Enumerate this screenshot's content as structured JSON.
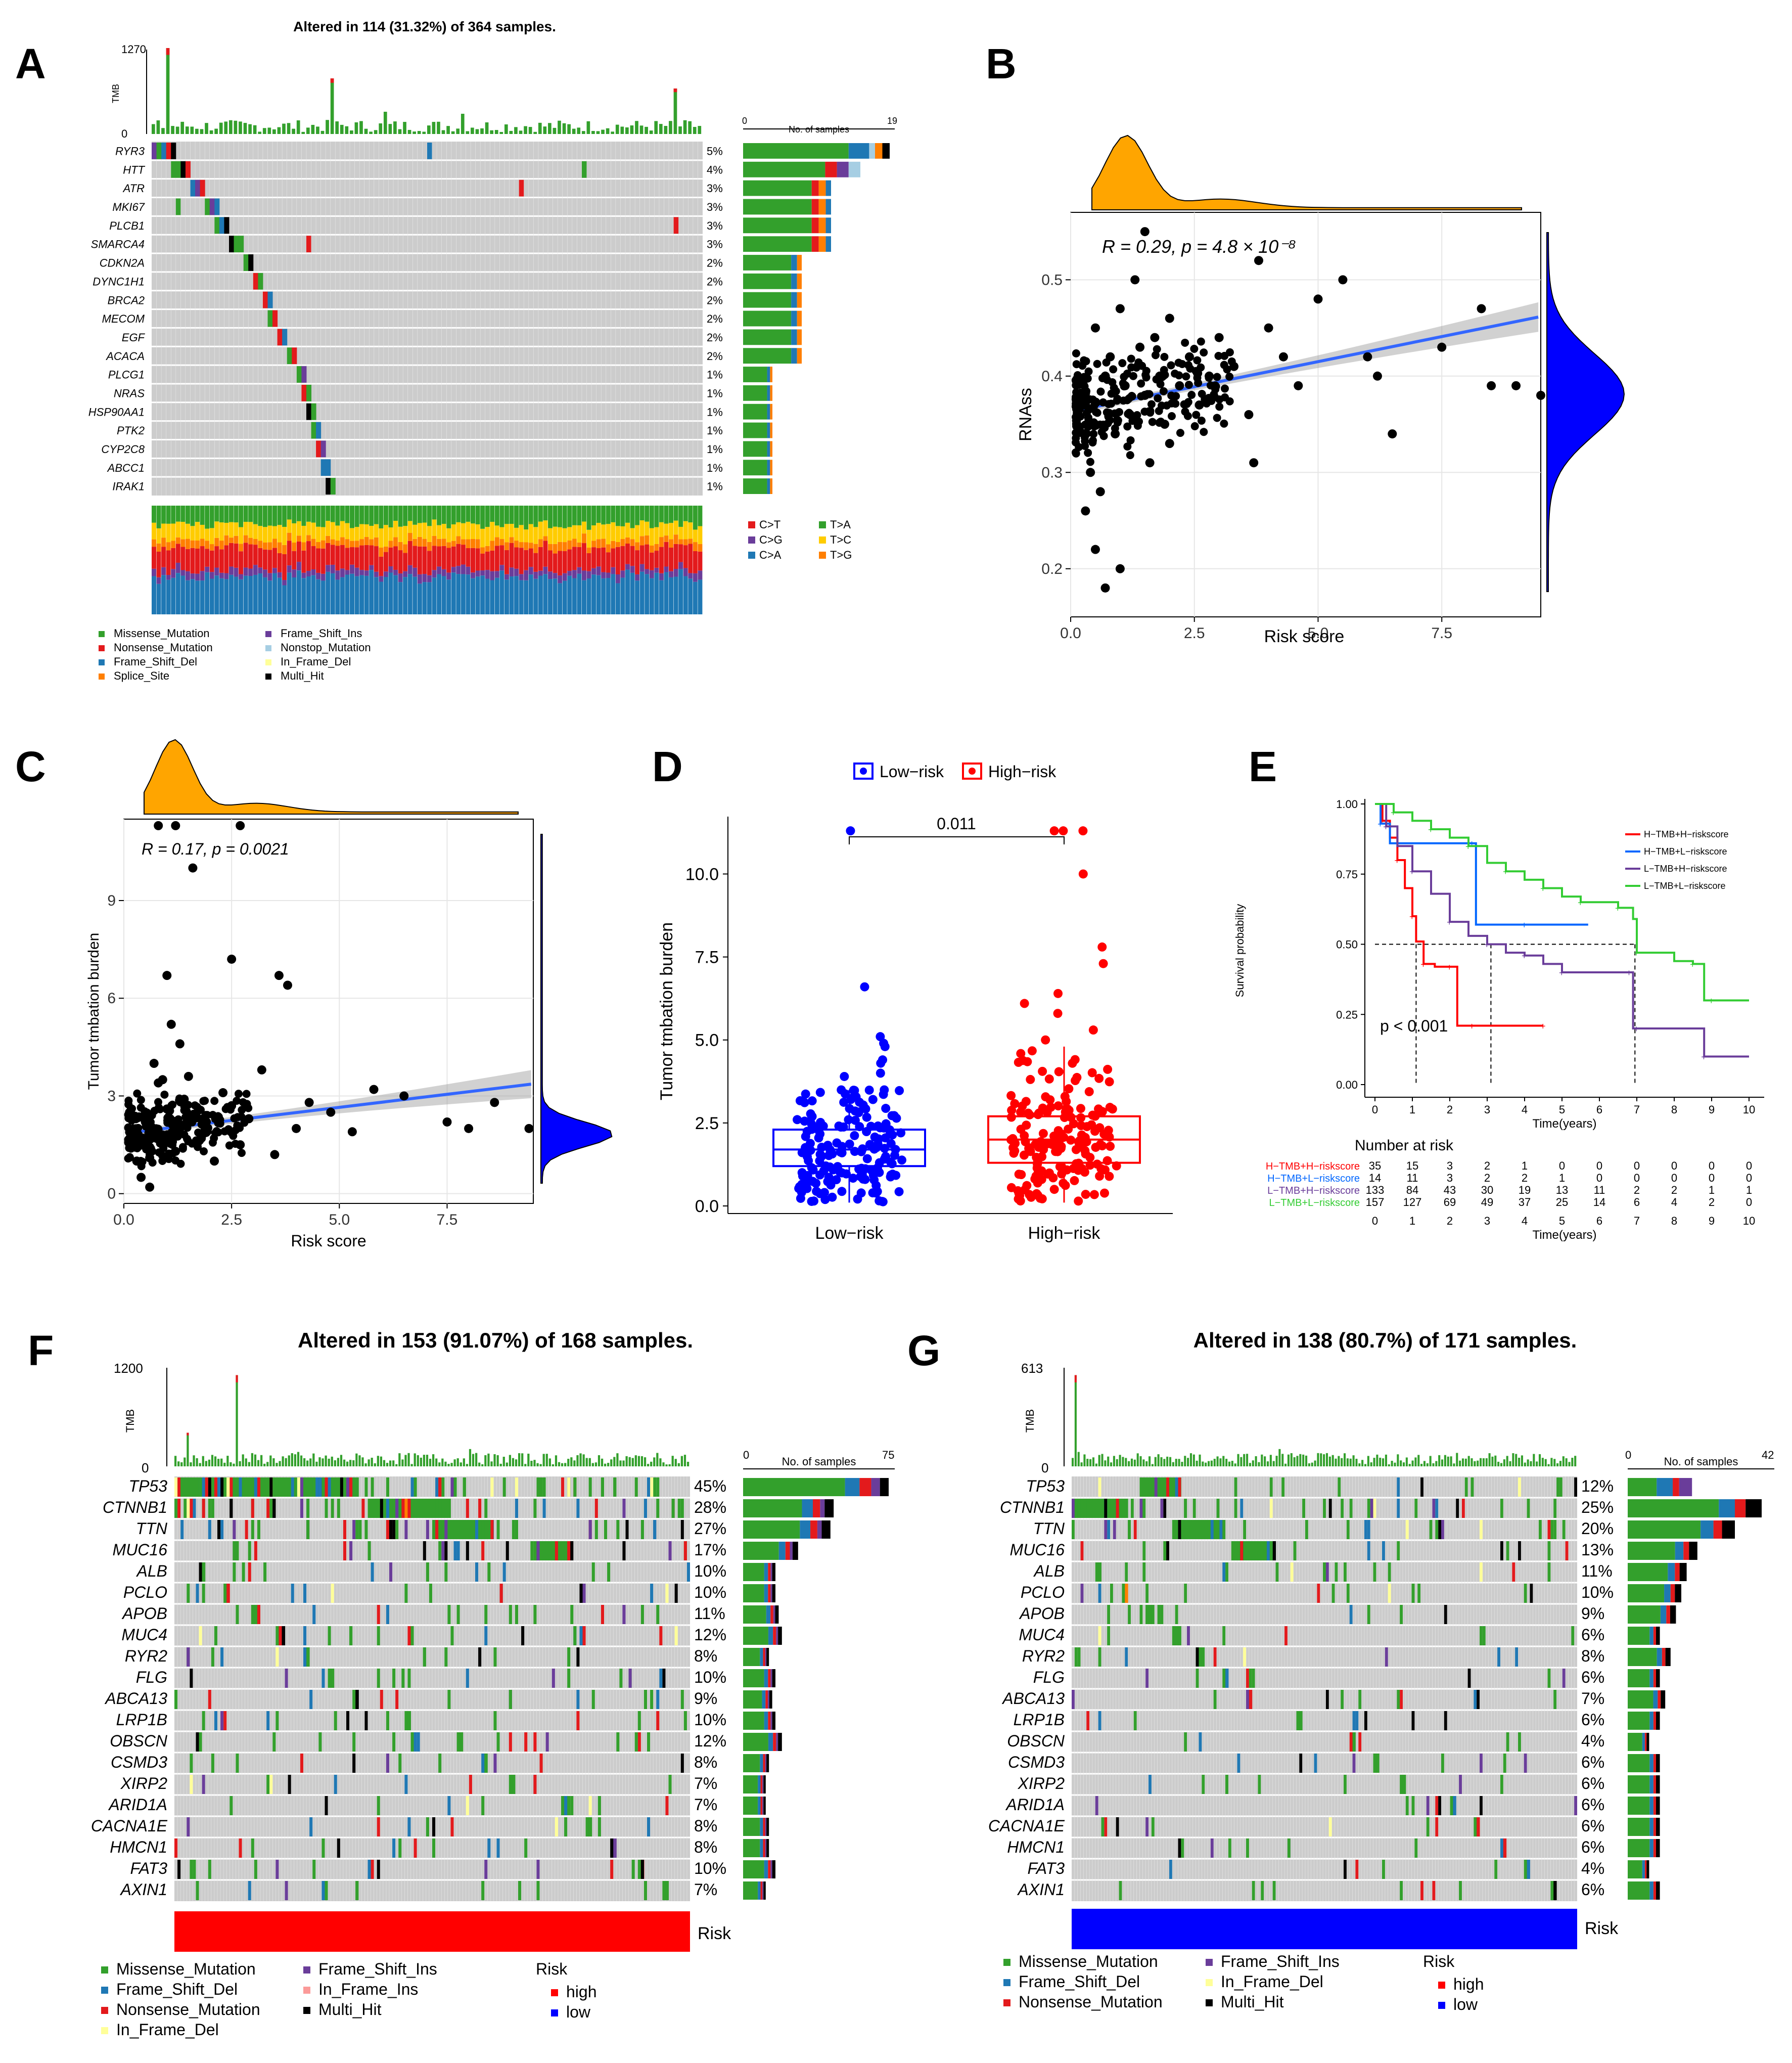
{
  "panels": {
    "A": {
      "letter": "A",
      "title": "Altered in 114 (31.32%) of 364 samples.",
      "tmb_label": "TMB",
      "tmb_max": "1270",
      "tmb_min": "0",
      "samples_label": "No. of samples",
      "samples_axis": [
        "0",
        "19"
      ],
      "genes": [
        "RYR3",
        "HTT",
        "ATR",
        "MKI67",
        "PLCB1",
        "SMARCA4",
        "CDKN2A",
        "DYNC1H1",
        "BRCA2",
        "MECOM",
        "EGF",
        "ACACA",
        "PLCG1",
        "NRAS",
        "HSP90AA1",
        "PTK2",
        "CYP2C8",
        "ABCC1",
        "IRAK1"
      ],
      "pcts": [
        "5%",
        "4%",
        "3%",
        "3%",
        "3%",
        "3%",
        "2%",
        "2%",
        "2%",
        "2%",
        "2%",
        "2%",
        "1%",
        "1%",
        "1%",
        "1%",
        "1%",
        "1%",
        "1%"
      ],
      "titv_legend": [
        "C>T",
        "C>G",
        "C>A",
        "T>A",
        "T>C",
        "T>G"
      ],
      "legend": [
        "Missense_Mutation",
        "Nonsense_Mutation",
        "Frame_Shift_Del",
        "Splice_Site",
        "Frame_Shift_Ins",
        "Nonstop_Mutation",
        "In_Frame_Del",
        "Multi_Hit"
      ]
    },
    "B": {
      "letter": "B",
      "stat_text": "R = 0.29, p = 4.8 × 10⁻⁸",
      "xlabel": "Risk score",
      "ylabel": "RNAss",
      "xticks": [
        "0.0",
        "2.5",
        "5.0",
        "7.5"
      ],
      "yticks": [
        "0.2",
        "0.3",
        "0.4",
        "0.5"
      ]
    },
    "C": {
      "letter": "C",
      "stat_text": "R = 0.17, p = 0.0021",
      "xlabel": "Risk score",
      "ylabel": "Tumor tmbation burden",
      "xticks": [
        "0.0",
        "2.5",
        "5.0",
        "7.5"
      ],
      "yticks": [
        "0",
        "3",
        "6",
        "9"
      ]
    },
    "D": {
      "letter": "D",
      "legend": [
        "Low−risk",
        "High−risk"
      ],
      "pvalue": "0.011",
      "ylabel": "Tumor tmbation burden",
      "xcats": [
        "Low−risk",
        "High−risk"
      ],
      "yticks": [
        "0.0",
        "2.5",
        "5.0",
        "7.5",
        "10.0"
      ]
    },
    "E": {
      "letter": "E",
      "ylabel": "Survival probability",
      "xlabel": "Time(years)",
      "pvalue": "p < 0.001",
      "yticks": [
        "0.00",
        "0.25",
        "0.50",
        "0.75",
        "1.00"
      ],
      "xticks": [
        "0",
        "1",
        "2",
        "3",
        "4",
        "5",
        "6",
        "7",
        "8",
        "9",
        "10"
      ],
      "groups": [
        "H−TMB+H−riskscore",
        "H−TMB+L−riskscore",
        "L−TMB+H−riskscore",
        "L−TMB+L−riskscore"
      ],
      "risk_title": "Number at risk",
      "risk_table": [
        [
          "35",
          "15",
          "3",
          "2",
          "1",
          "0",
          "0",
          "0",
          "0",
          "0",
          "0"
        ],
        [
          "14",
          "11",
          "3",
          "2",
          "2",
          "1",
          "0",
          "0",
          "0",
          "0",
          "0"
        ],
        [
          "133",
          "84",
          "43",
          "30",
          "19",
          "13",
          "11",
          "2",
          "2",
          "1",
          "1"
        ],
        [
          "157",
          "127",
          "69",
          "49",
          "37",
          "25",
          "14",
          "6",
          "4",
          "2",
          "0"
        ]
      ]
    },
    "F": {
      "letter": "F",
      "title": "Altered in 153 (91.07%) of 168 samples.",
      "tmb_label": "TMB",
      "tmb_max": "1200",
      "tmb_min": "0",
      "samples_label": "No. of samples",
      "samples_axis": [
        "0",
        "75"
      ],
      "genes": [
        "TP53",
        "CTNNB1",
        "TTN",
        "MUC16",
        "ALB",
        "PCLO",
        "APOB",
        "MUC4",
        "RYR2",
        "FLG",
        "ABCA13",
        "LRP1B",
        "OBSCN",
        "CSMD3",
        "XIRP2",
        "ARID1A",
        "CACNA1E",
        "HMCN1",
        "FAT3",
        "AXIN1"
      ],
      "pcts": [
        "45%",
        "28%",
        "27%",
        "17%",
        "10%",
        "10%",
        "11%",
        "12%",
        "8%",
        "10%",
        "9%",
        "10%",
        "12%",
        "8%",
        "7%",
        "7%",
        "8%",
        "8%",
        "10%",
        "7%"
      ],
      "risk_label": "Risk",
      "legend": [
        "Missense_Mutation",
        "Frame_Shift_Del",
        "Nonsense_Mutation",
        "In_Frame_Del",
        "Frame_Shift_Ins",
        "In_Frame_Ins",
        "Multi_Hit"
      ],
      "risk_legend_title": "Risk",
      "risk_legend": [
        "high",
        "low"
      ]
    },
    "G": {
      "letter": "G",
      "title": "Altered in 138 (80.7%) of 171 samples.",
      "tmb_label": "TMB",
      "tmb_max": "613",
      "tmb_min": "0",
      "samples_label": "No. of samples",
      "samples_axis": [
        "0",
        "42"
      ],
      "genes": [
        "TP53",
        "CTNNB1",
        "TTN",
        "MUC16",
        "ALB",
        "PCLO",
        "APOB",
        "MUC4",
        "RYR2",
        "FLG",
        "ABCA13",
        "LRP1B",
        "OBSCN",
        "CSMD3",
        "XIRP2",
        "ARID1A",
        "CACNA1E",
        "HMCN1",
        "FAT3",
        "AXIN1"
      ],
      "pcts": [
        "12%",
        "25%",
        "20%",
        "13%",
        "11%",
        "10%",
        "9%",
        "6%",
        "8%",
        "6%",
        "7%",
        "6%",
        "4%",
        "6%",
        "6%",
        "6%",
        "6%",
        "6%",
        "4%",
        "6%"
      ],
      "risk_label": "Risk",
      "legend": [
        "Missense_Mutation",
        "Frame_Shift_Del",
        "Nonsense_Mutation",
        "Frame_Shift_Ins",
        "In_Frame_Del",
        "Multi_Hit"
      ],
      "risk_legend_title": "Risk",
      "risk_legend": [
        "high",
        "low"
      ]
    }
  },
  "colors": {
    "missense": "#33a02c",
    "nonsense": "#e31a1c",
    "frameshift_del": "#1f78b4",
    "frameshift_ins": "#6a3d9a",
    "splice": "#ff7f00",
    "nonstop": "#a6cee3",
    "inframe_del": "#ffff99",
    "inframe_ins": "#fb9a99",
    "multi": "#000000",
    "grey": "#cccccc",
    "high": "#ff0000",
    "low": "#0000ff",
    "orange_density": "#ffa500",
    "blue_density": "#0000ff",
    "fit": "#3366ff",
    "km": [
      "#ff0000",
      "#0066ff",
      "#6a3d9a",
      "#33cc33"
    ]
  },
  "chart_data": [
    {
      "id": "B",
      "type": "scatter",
      "title": "",
      "xlabel": "Risk score",
      "ylabel": "RNAss",
      "xlim": [
        0,
        9.5
      ],
      "ylim": [
        0.15,
        0.57
      ],
      "annotation": "R = 0.29, p = 4.8e-8",
      "fit": {
        "intercept": 0.363,
        "slope": 0.0104
      },
      "x": [
        0.3,
        0.4,
        0.5,
        0.6,
        0.7,
        0.8,
        0.9,
        1.0,
        1.1,
        1.2,
        1.3,
        1.4,
        1.5,
        1.6,
        1.7,
        1.8,
        1.9,
        2.0,
        2.2,
        2.4,
        2.6,
        2.8,
        3.0,
        3.3,
        3.6,
        3.8,
        4.0,
        4.3,
        4.6,
        5.0,
        5.5,
        6.0,
        6.5,
        7.5,
        8.3,
        8.5,
        9.0,
        9.5,
        0.5,
        1.5,
        0.3,
        0.7,
        1.0,
        2.0,
        3.7,
        6.2
      ],
      "y": [
        0.37,
        0.3,
        0.45,
        0.28,
        0.4,
        0.42,
        0.34,
        0.47,
        0.39,
        0.36,
        0.5,
        0.43,
        0.38,
        0.31,
        0.44,
        0.4,
        0.35,
        0.46,
        0.39,
        0.42,
        0.37,
        0.4,
        0.44,
        0.41,
        0.36,
        0.52,
        0.45,
        0.42,
        0.39,
        0.48,
        0.5,
        0.42,
        0.34,
        0.43,
        0.47,
        0.39,
        0.39,
        0.38,
        0.22,
        0.55,
        0.26,
        0.18,
        0.2,
        0.33,
        0.31,
        0.4
      ]
    },
    {
      "id": "C",
      "type": "scatter",
      "xlabel": "Risk score",
      "ylabel": "Tumor tmbation burden",
      "xlim": [
        0,
        9.5
      ],
      "ylim": [
        -0.3,
        11.5
      ],
      "annotation": "R = 0.17, p = 0.0021",
      "fit": {
        "intercept": 1.85,
        "slope": 0.16
      },
      "x": [
        0.5,
        0.6,
        0.7,
        0.8,
        0.9,
        1.0,
        1.1,
        1.2,
        1.3,
        1.4,
        1.5,
        1.7,
        1.9,
        2.1,
        2.3,
        2.5,
        2.7,
        2.9,
        3.2,
        3.5,
        3.8,
        4.0,
        4.3,
        4.8,
        5.3,
        5.8,
        6.5,
        7.5,
        8.0,
        8.6,
        9.4,
        0.8,
        1.2,
        1.6,
        2.5,
        3.6,
        0.4,
        0.6,
        1.0,
        2.7,
        0.9,
        1.3,
        0.3
      ],
      "y": [
        2.2,
        1.1,
        4.0,
        3.4,
        1.8,
        2.6,
        5.2,
        1.3,
        2.0,
        2.9,
        3.6,
        1.6,
        2.4,
        1.0,
        3.1,
        2.7,
        1.5,
        2.3,
        3.8,
        1.2,
        6.4,
        2.0,
        2.8,
        2.5,
        1.9,
        3.2,
        3.0,
        2.2,
        2.0,
        2.8,
        2.0,
        11.3,
        11.3,
        10.0,
        7.2,
        6.7,
        0.5,
        0.2,
        6.7,
        11.3,
        3.5,
        4.6,
        1.0
      ]
    },
    {
      "id": "D",
      "type": "box",
      "categories": [
        "Low−risk",
        "High−risk"
      ],
      "ylabel": "Tumor tmbation burden",
      "ylim": [
        0,
        11.5
      ],
      "series": [
        {
          "name": "Low−risk",
          "q1": 1.2,
          "median": 1.7,
          "q3": 2.3,
          "whisker_low": 0.1,
          "whisker_high": 3.5,
          "outliers": [
            11.3,
            6.6,
            5.1,
            4.9,
            4.8,
            4.4,
            4.3,
            4.0,
            3.9
          ]
        },
        {
          "name": "High−risk",
          "q1": 1.3,
          "median": 2.0,
          "q3": 2.7,
          "whisker_low": 0.1,
          "whisker_high": 4.8,
          "outliers": [
            11.3,
            11.3,
            11.3,
            10.0,
            7.8,
            7.3,
            6.4,
            6.1,
            5.8,
            5.3,
            5.0
          ]
        }
      ],
      "pvalue": "0.011"
    },
    {
      "id": "E",
      "type": "line",
      "title": "",
      "xlabel": "Time(years)",
      "ylabel": "Survival probability",
      "xlim": [
        0,
        10
      ],
      "ylim": [
        0,
        1
      ],
      "series": [
        {
          "name": "H−TMB+H−riskscore",
          "x": [
            0,
            0.2,
            0.4,
            0.6,
            0.8,
            1.0,
            1.1,
            1.3,
            1.6,
            2.0,
            2.2,
            2.6,
            3.0,
            4.5
          ],
          "y": [
            1,
            0.94,
            0.88,
            0.8,
            0.7,
            0.6,
            0.51,
            0.43,
            0.42,
            0.42,
            0.21,
            0.21,
            0.21,
            0.21
          ]
        },
        {
          "name": "H−TMB+L−riskscore",
          "x": [
            0,
            0.15,
            0.4,
            2.6,
            2.7,
            4.0,
            5.7
          ],
          "y": [
            1,
            0.93,
            0.86,
            0.86,
            0.57,
            0.57,
            0.57
          ]
        },
        {
          "name": "L−TMB+H−riskscore",
          "x": [
            0,
            0.3,
            0.6,
            1.0,
            1.5,
            2.0,
            2.5,
            3.0,
            3.5,
            4.0,
            4.5,
            5.0,
            6.0,
            6.8,
            6.9,
            7.0,
            8.7,
            8.8,
            10.0
          ],
          "y": [
            1,
            0.92,
            0.85,
            0.76,
            0.68,
            0.58,
            0.53,
            0.5,
            0.47,
            0.46,
            0.43,
            0.4,
            0.4,
            0.4,
            0.2,
            0.2,
            0.2,
            0.1,
            0.1
          ]
        },
        {
          "name": "L−TMB+L−riskscore",
          "x": [
            0,
            0.5,
            1.0,
            1.5,
            2.0,
            2.5,
            3.0,
            3.5,
            4.0,
            4.5,
            5.0,
            5.5,
            6.0,
            6.5,
            6.9,
            7.0,
            8.0,
            8.5,
            8.8,
            9.0,
            10.0
          ],
          "y": [
            1,
            0.97,
            0.94,
            0.91,
            0.88,
            0.85,
            0.79,
            0.76,
            0.73,
            0.7,
            0.67,
            0.65,
            0.65,
            0.63,
            0.59,
            0.47,
            0.44,
            0.43,
            0.3,
            0.3,
            0.3
          ]
        }
      ],
      "annotation": "p < 0.001"
    }
  ]
}
